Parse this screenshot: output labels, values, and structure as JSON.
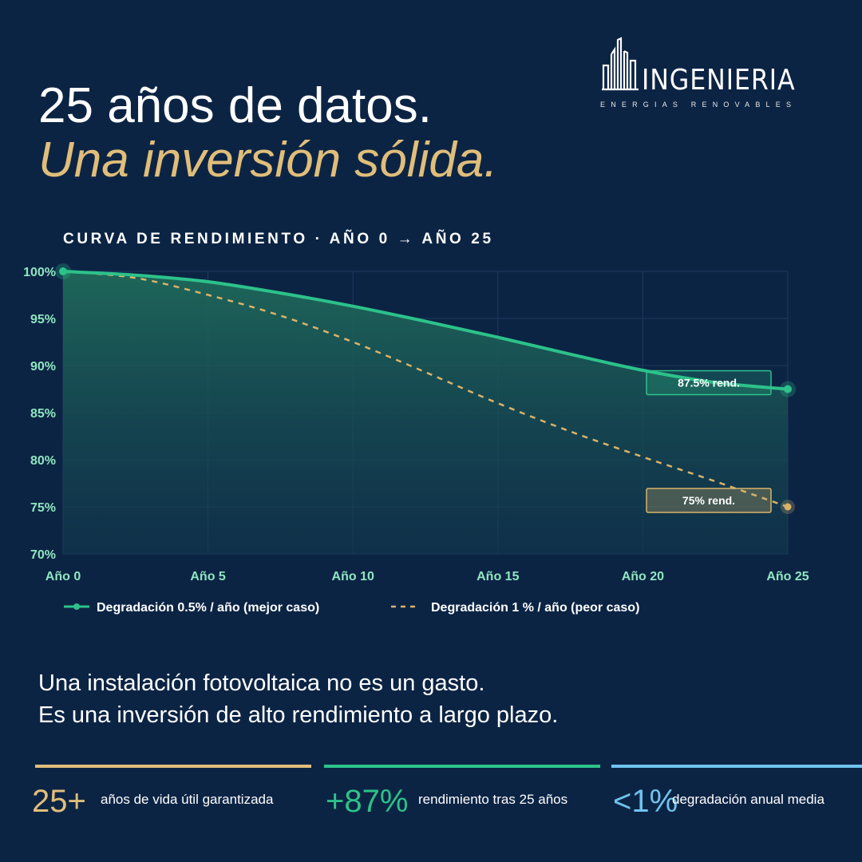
{
  "brand": {
    "name": "INGENIERIA",
    "tagline": "ENERGIAS RENOVABLES"
  },
  "headline": {
    "line1": "25 años de datos.",
    "line2": "Una inversión sólida."
  },
  "colors": {
    "background": "#0c2444",
    "accent_gold": "#e0be7a",
    "accent_green": "#2cc28a",
    "accent_blue": "#6fc3ee"
  },
  "chart_data": {
    "type": "line",
    "title": "CURVA DE RENDIMIENTO · AÑO 0 → AÑO 25",
    "xlabel": "",
    "ylabel": "",
    "x_ticks": [
      "Año 0",
      "Año 5",
      "Año 10",
      "Año 15",
      "Año 20",
      "Año 25"
    ],
    "x_tick_values": [
      0,
      5,
      10,
      15,
      20,
      25
    ],
    "y_ticks": [
      "100%",
      "95%",
      "90%",
      "85%",
      "80%",
      "75%",
      "70%"
    ],
    "y_tick_values": [
      100,
      95,
      90,
      85,
      80,
      75,
      70
    ],
    "xlim": [
      0,
      25
    ],
    "ylim": [
      70,
      100
    ],
    "grid": true,
    "legend_position": "bottom-left",
    "series": [
      {
        "name": "Degradación 0.5% / año (mejor caso)",
        "style": "solid",
        "color": "#2cc28a",
        "x": [
          0,
          2.5,
          5,
          7.5,
          10,
          12.5,
          15,
          17.5,
          20,
          22.5,
          25
        ],
        "y": [
          100,
          99.6,
          98.9,
          97.7,
          96.3,
          94.7,
          93.0,
          91.2,
          89.5,
          88.2,
          87.5
        ],
        "end_label": "87.5% rend."
      },
      {
        "name": "Degradación 1 % / año (peor caso)",
        "style": "dashed",
        "color": "#d9b36a",
        "x": [
          0,
          2.5,
          5,
          7.5,
          10,
          12.5,
          15,
          17.5,
          20,
          22.5,
          25
        ],
        "y": [
          100,
          99.3,
          97.5,
          95.3,
          92.5,
          89.3,
          86.0,
          83.0,
          80.3,
          77.7,
          75.0
        ],
        "end_label": "75% rend."
      }
    ]
  },
  "body": {
    "line1": "Una instalación fotovoltaica no es un gasto.",
    "line2": "Es una inversión de alto rendimiento a largo plazo."
  },
  "stats": [
    {
      "value": "25+",
      "label": "años de vida útil garantizada",
      "color": "#e0be7a"
    },
    {
      "value": "+87%",
      "label": "rendimiento tras 25 años",
      "color": "#2cc28a"
    },
    {
      "value": "<1%",
      "label": "degradación anual media",
      "color": "#6fc3ee"
    }
  ]
}
